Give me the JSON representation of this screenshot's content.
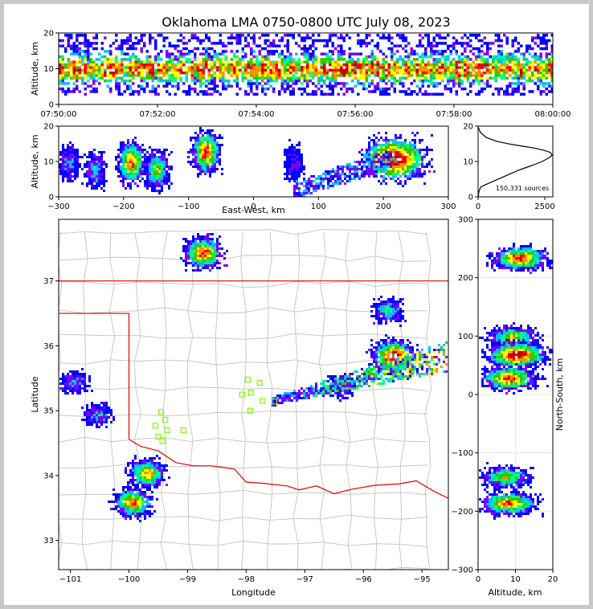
{
  "title": "Oklahoma LMA 0750-0800 UTC July 08, 2023",
  "colors": {
    "background": "#ffffff",
    "window_border": "#c8c8c8",
    "state_border": "#e00000",
    "county_lines": "#c8c8c8",
    "stations": "#7cfc00",
    "density_scale": [
      "#0000ff",
      "#7a00ff",
      "#00c0ff",
      "#00ff80",
      "#40c000",
      "#ffff00",
      "#ff9000",
      "#ff0000",
      "#c00000",
      "#ffffff",
      "#808080",
      "#000000"
    ]
  },
  "chart_data": [
    {
      "name": "time-altitude",
      "type": "heatmap",
      "ylabel": "Altitude, km",
      "ylim": [
        0,
        20
      ],
      "yticks": [
        "0",
        "10",
        "20"
      ],
      "xlim": [
        "07:50:00",
        "08:00:00"
      ],
      "xticks": [
        "07:50:00",
        "07:52:00",
        "07:54:00",
        "07:56:00",
        "07:58:00",
        "08:00:00"
      ],
      "sources_altitude_band": [
        3,
        18
      ],
      "peak_density_altitude_band": [
        6,
        14
      ]
    },
    {
      "name": "east-west-altitude",
      "type": "heatmap",
      "xlabel": "East-West, km",
      "ylabel": "Altitude, km",
      "xlim": [
        -300,
        300
      ],
      "ylim": [
        0,
        20
      ],
      "xticks": [
        "−300",
        "−200",
        "−100",
        "0",
        "100",
        "200",
        "300"
      ],
      "yticks": [
        "0",
        "10",
        "20"
      ],
      "clusters": [
        {
          "x": -285,
          "alt": 10,
          "density": 0.25
        },
        {
          "x": -245,
          "alt": 8,
          "density": 0.3
        },
        {
          "x": -190,
          "alt": 10,
          "density": 0.8
        },
        {
          "x": -150,
          "alt": 8,
          "density": 0.55
        },
        {
          "x": -75,
          "alt": 13,
          "density": 0.85
        },
        {
          "x": 60,
          "alt": 10,
          "density": 0.15
        },
        {
          "x": 215,
          "alt": 11,
          "density": 1.0
        }
      ]
    },
    {
      "name": "altitude-histogram",
      "type": "line",
      "xlim": [
        0,
        2800
      ],
      "ylim": [
        0,
        20
      ],
      "xticks": [
        "0",
        "2500"
      ],
      "yticks": [
        "0",
        "10",
        "20"
      ],
      "annotation": "150,331 sources",
      "x": [
        0,
        30,
        100,
        300,
        600,
        900,
        1200,
        1500,
        1800,
        2100,
        2400,
        2650,
        2780,
        2700,
        2450,
        2100,
        1700,
        1200,
        700,
        300,
        80,
        0
      ],
      "y": [
        0,
        1.5,
        2.8,
        3.5,
        4.5,
        5.5,
        6.5,
        7.5,
        8.3,
        9.1,
        10,
        11,
        11.8,
        12.6,
        13.2,
        13.8,
        14.3,
        14.9,
        15.7,
        16.8,
        18.3,
        19.8
      ]
    },
    {
      "name": "plan-view",
      "type": "heatmap",
      "xlabel": "Longitude",
      "ylabel": "Latitude",
      "xlim": [
        -101.2,
        -94.55
      ],
      "ylim": [
        32.55,
        37.95
      ],
      "xticks": [
        "−101",
        "−100",
        "−99",
        "−98",
        "−97",
        "−96",
        "−95"
      ],
      "yticks": [
        "33",
        "34",
        "35",
        "36",
        "37"
      ],
      "clusters": [
        {
          "lon": -98.75,
          "lat": 37.45,
          "density": 0.85
        },
        {
          "lon": -95.6,
          "lat": 36.55,
          "density": 0.4
        },
        {
          "lon": -95.5,
          "lat": 35.85,
          "density": 1.0
        },
        {
          "lon": -96.4,
          "lat": 35.4,
          "density": 0.25
        },
        {
          "lon": -99.7,
          "lat": 34.05,
          "density": 0.7
        },
        {
          "lon": -99.95,
          "lat": 33.6,
          "density": 0.75
        },
        {
          "lon": -100.95,
          "lat": 35.45,
          "density": 0.3
        },
        {
          "lon": -100.55,
          "lat": 34.95,
          "density": 0.3
        }
      ],
      "stations": [
        [
          -99.45,
          34.98
        ],
        [
          -99.38,
          34.86
        ],
        [
          -99.55,
          34.77
        ],
        [
          -99.35,
          34.7
        ],
        [
          -99.5,
          34.6
        ],
        [
          -99.43,
          34.53
        ],
        [
          -99.07,
          34.7
        ],
        [
          -97.97,
          35.48
        ],
        [
          -97.77,
          35.43
        ],
        [
          -98.07,
          35.25
        ],
        [
          -97.92,
          35.28
        ],
        [
          -97.72,
          35.15
        ],
        [
          -97.52,
          35.14
        ],
        [
          -97.93,
          35.0
        ]
      ]
    },
    {
      "name": "altitude-north-south",
      "type": "heatmap",
      "xlabel": "Altitude, km",
      "ylabel": "North-South, km",
      "xlim": [
        0,
        20
      ],
      "ylim": [
        -300,
        300
      ],
      "xticks": [
        "0",
        "10",
        "20"
      ],
      "yticks": [
        "−300",
        "−200",
        "−100",
        "0",
        "100",
        "200",
        "300"
      ],
      "clusters": [
        {
          "alt": 11,
          "ns": 235,
          "density": 0.85
        },
        {
          "alt": 9,
          "ns": 100,
          "density": 0.6
        },
        {
          "alt": 10,
          "ns": 70,
          "density": 1.0
        },
        {
          "alt": 8,
          "ns": 30,
          "density": 0.85
        },
        {
          "alt": 7,
          "ns": -140,
          "density": 0.6
        },
        {
          "alt": 8,
          "ns": -185,
          "density": 0.8
        }
      ]
    }
  ]
}
